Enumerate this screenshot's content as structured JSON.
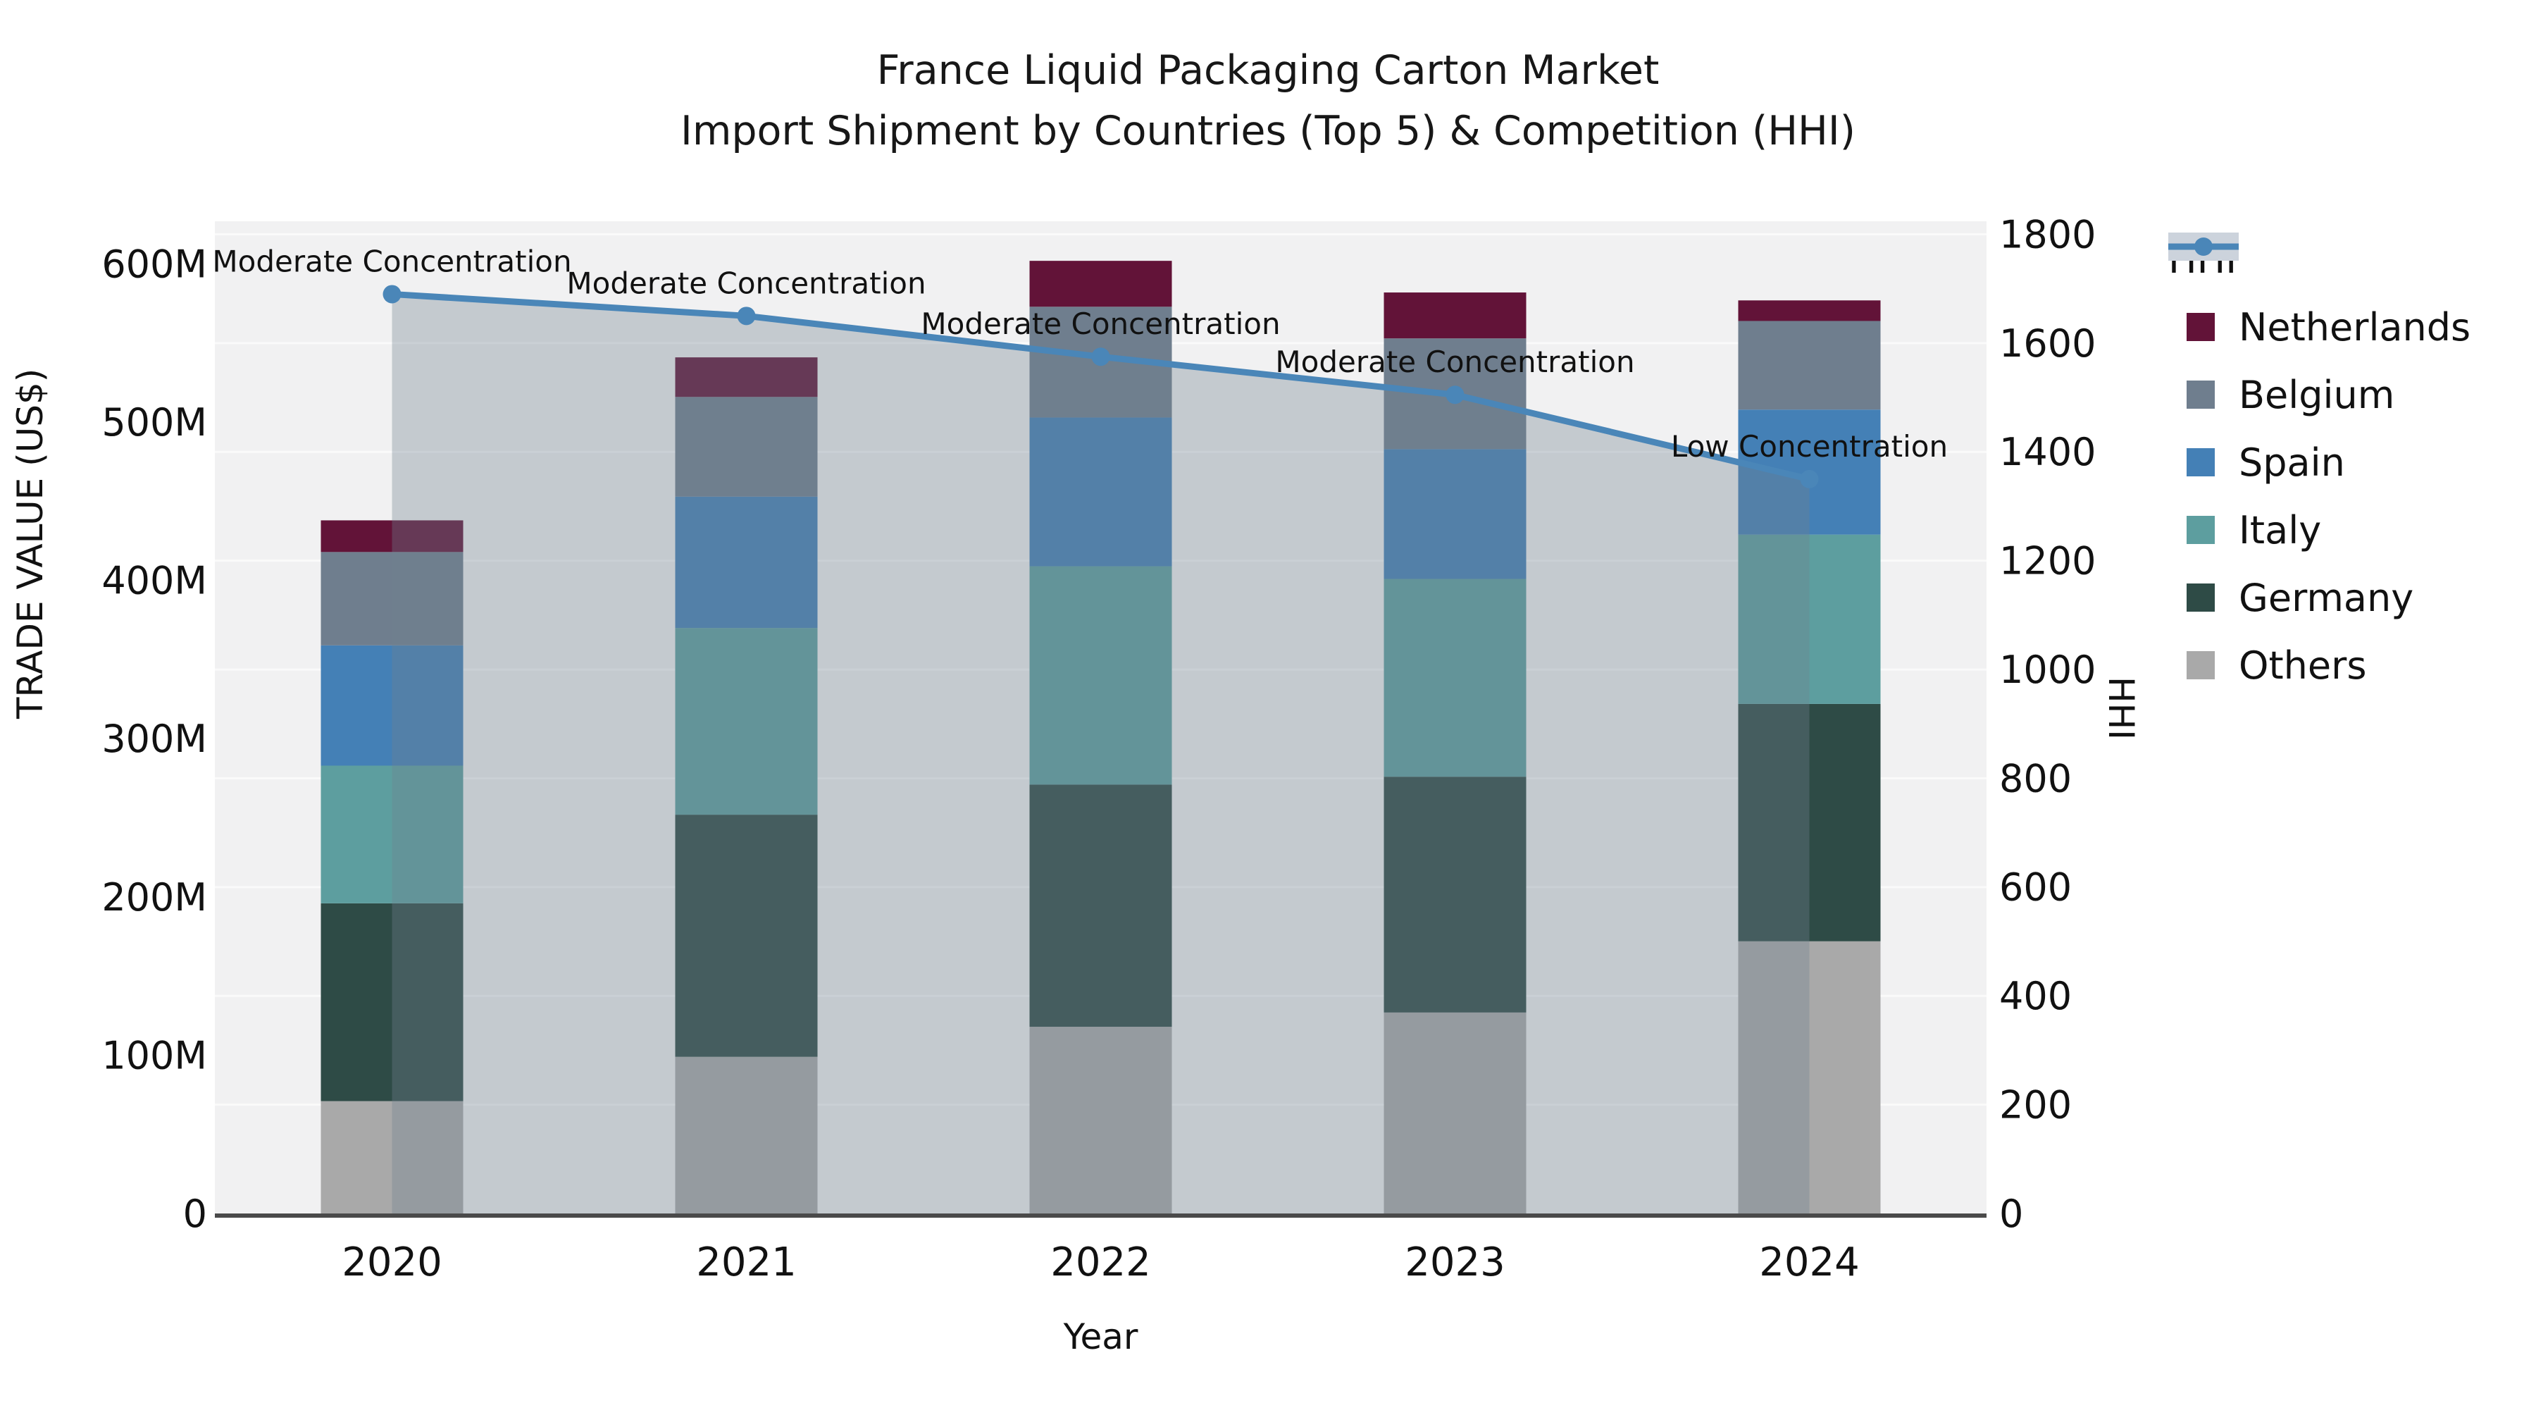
{
  "figure": {
    "title_line1": "France Liquid Packaging Carton Market",
    "title_line2": "Import Shipment by Countries (Top 5) & Competition (HHI)",
    "xlabel": "Year",
    "ylabel_left": "TRADE VALUE (US$)",
    "ylabel_right": "HHI"
  },
  "chart_data": {
    "type": "bar",
    "stacked": true,
    "title": "France Liquid Packaging Carton Market — Import Shipment by Countries (Top 5) & Competition (HHI)",
    "xlabel": "Year",
    "ylabel": "TRADE VALUE (US$)",
    "ylabel_right": "HHI",
    "units": "millions US$",
    "categories": [
      "2020",
      "2021",
      "2022",
      "2023",
      "2024"
    ],
    "series": [
      {
        "name": "Others",
        "color": "#a9a9a9",
        "values": [
          71,
          99,
          118,
          127,
          172
        ]
      },
      {
        "name": "Germany",
        "color": "#2e4b46",
        "values": [
          125,
          153,
          153,
          149,
          150
        ]
      },
      {
        "name": "Italy",
        "color": "#5d9e9f",
        "values": [
          87,
          118,
          138,
          125,
          107
        ]
      },
      {
        "name": "Spain",
        "color": "#4480b6",
        "values": [
          76,
          83,
          94,
          82,
          79
        ]
      },
      {
        "name": "Belgium",
        "color": "#6f7e8e",
        "values": [
          59,
          63,
          70,
          70,
          56
        ]
      },
      {
        "name": "Netherlands",
        "color": "#621338",
        "values": [
          20,
          25,
          29,
          29,
          13
        ]
      }
    ],
    "bar_totals": [
      438,
      541,
      602,
      582,
      577
    ],
    "line_series": {
      "name": "HHI",
      "axis": "right",
      "values": [
        1690,
        1650,
        1575,
        1505,
        1350
      ],
      "color": "#4a86b8",
      "area_fill": "rgba(112,128,144,0.35)"
    },
    "annotations": [
      {
        "category": "2020",
        "text": "Moderate Concentration"
      },
      {
        "category": "2021",
        "text": "Moderate Concentration"
      },
      {
        "category": "2022",
        "text": "Moderate Concentration"
      },
      {
        "category": "2023",
        "text": "Moderate Concentration"
      },
      {
        "category": "2024",
        "text": "Low Concentration"
      }
    ],
    "left_axis": {
      "tick_labels": [
        "0",
        "100M",
        "200M",
        "300M",
        "400M",
        "500M",
        "600M"
      ],
      "tick_values": [
        0,
        100,
        200,
        300,
        400,
        500,
        600
      ],
      "max": 627
    },
    "right_axis": {
      "tick_labels": [
        "0",
        "200",
        "400",
        "600",
        "800",
        "1000",
        "1200",
        "1400",
        "1600",
        "1800"
      ],
      "tick_values": [
        0,
        200,
        400,
        600,
        800,
        1000,
        1200,
        1400,
        1600,
        1800
      ],
      "max": 1824
    },
    "legend_position": "right",
    "grid": true,
    "legend": [
      {
        "label": "HHI",
        "type": "line",
        "color": "#4a86b8"
      },
      {
        "label": "Netherlands",
        "type": "patch",
        "color": "#621338"
      },
      {
        "label": "Belgium",
        "type": "patch",
        "color": "#6f7e8e"
      },
      {
        "label": "Spain",
        "type": "patch",
        "color": "#4480b6"
      },
      {
        "label": "Italy",
        "type": "patch",
        "color": "#5d9e9f"
      },
      {
        "label": "Germany",
        "type": "patch",
        "color": "#2e4b46"
      },
      {
        "label": "Others",
        "type": "patch",
        "color": "#a9a9a9"
      }
    ]
  },
  "style": {
    "plot_bg": "#f1f1f2",
    "gridline": "#fafafa",
    "spine": "#4a4a4a",
    "text": "#111111"
  }
}
